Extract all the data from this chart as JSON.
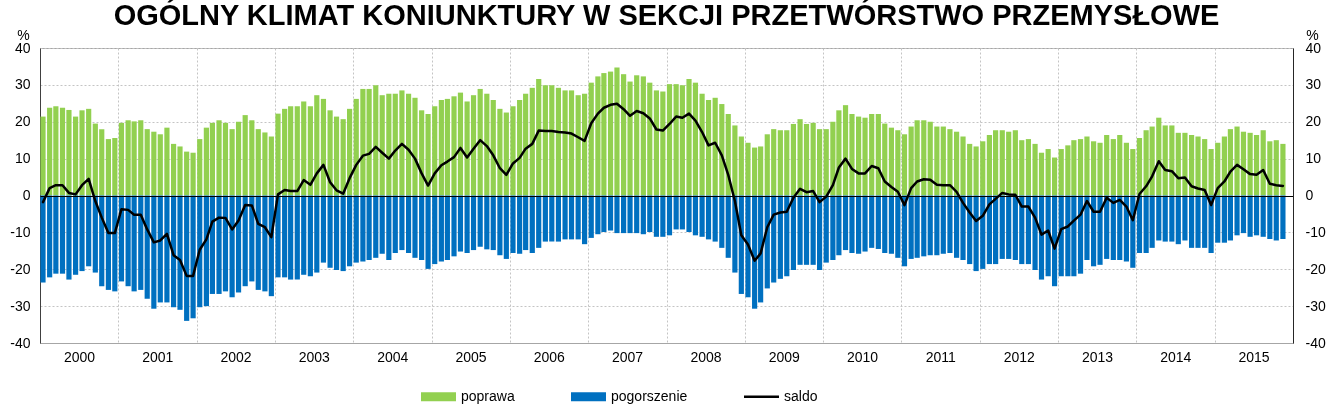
{
  "chart_data": {
    "type": "bar",
    "title": "OGÓLNY KLIMAT KONIUNKTURY W SEKCJI PRZETWÓRSTWO PRZEMYSŁOWE",
    "ylabel": "%",
    "y2label": "%",
    "x": [
      "2000-01-15",
      "2000-02-15",
      "2000-03-15",
      "2000-04-15",
      "2000-05-15",
      "2000-06-15",
      "2000-07-15",
      "2000-08-15",
      "2000-09-15",
      "2000-10-15",
      "2000-11-15",
      "2000-12-15",
      "2001-01-15",
      "2001-02-15",
      "2001-03-15",
      "2001-04-15",
      "2001-05-15",
      "2001-06-15",
      "2001-07-15",
      "2001-08-15",
      "2001-09-15",
      "2001-10-15",
      "2001-11-15",
      "2001-12-15",
      "2002-01-15",
      "2002-02-15",
      "2002-03-15",
      "2002-04-15",
      "2002-05-15",
      "2002-06-15",
      "2002-07-15",
      "2002-08-15",
      "2002-09-15",
      "2002-10-15",
      "2002-11-15",
      "2002-12-15",
      "2003-01-15",
      "2003-02-15",
      "2003-03-15",
      "2003-04-15",
      "2003-05-15",
      "2003-06-15",
      "2003-07-15",
      "2003-08-15",
      "2003-09-15",
      "2003-10-15",
      "2003-11-15",
      "2003-12-15",
      "2004-01-15",
      "2004-02-15",
      "2004-03-15",
      "2004-04-15",
      "2004-05-15",
      "2004-06-15",
      "2004-07-15",
      "2004-08-15",
      "2004-09-15",
      "2004-10-15",
      "2004-11-15",
      "2004-12-15",
      "2005-01-15",
      "2005-02-15",
      "2005-03-15",
      "2005-04-15",
      "2005-05-15",
      "2005-06-15",
      "2005-07-15",
      "2005-08-15",
      "2005-09-15",
      "2005-10-15",
      "2005-11-15",
      "2005-12-15",
      "2006-01-15",
      "2006-02-15",
      "2006-03-15",
      "2006-04-15",
      "2006-05-15",
      "2006-06-15",
      "2006-07-15",
      "2006-08-15",
      "2006-09-15",
      "2006-10-15",
      "2006-11-15",
      "2006-12-15",
      "2007-01-15",
      "2007-02-15",
      "2007-03-15",
      "2007-04-15",
      "2007-05-15",
      "2007-06-15",
      "2007-07-15",
      "2007-08-15",
      "2007-09-15",
      "2007-10-15",
      "2007-11-15",
      "2007-12-15",
      "2008-01-15",
      "2008-02-15",
      "2008-03-15",
      "2008-04-15",
      "2008-05-15",
      "2008-06-15",
      "2008-07-15",
      "2008-08-15",
      "2008-09-15",
      "2008-10-15",
      "2008-11-15",
      "2008-12-15",
      "2009-01-15",
      "2009-02-15",
      "2009-03-15",
      "2009-04-15",
      "2009-05-15",
      "2009-06-15",
      "2009-07-15",
      "2009-08-15",
      "2009-09-15",
      "2009-10-15",
      "2009-11-15",
      "2009-12-15",
      "2010-01-15",
      "2010-02-15",
      "2010-03-15",
      "2010-04-15",
      "2010-05-15",
      "2010-06-15",
      "2010-07-15",
      "2010-08-15",
      "2010-09-15",
      "2010-10-15",
      "2010-11-15",
      "2010-12-15",
      "2011-01-15",
      "2011-02-15",
      "2011-03-15",
      "2011-04-15",
      "2011-05-15",
      "2011-06-15",
      "2011-07-15",
      "2011-08-15",
      "2011-09-15",
      "2011-10-15",
      "2011-11-15",
      "2011-12-15",
      "2012-01-15",
      "2012-02-15",
      "2012-03-15",
      "2012-04-15",
      "2012-05-15",
      "2012-06-15",
      "2012-07-15",
      "2012-08-15",
      "2012-09-15",
      "2012-10-15",
      "2012-11-15",
      "2012-12-15",
      "2013-01-15",
      "2013-02-15",
      "2013-03-15",
      "2013-04-15",
      "2013-05-15",
      "2013-06-15",
      "2013-07-15",
      "2013-08-15",
      "2013-09-15",
      "2013-10-15",
      "2013-11-15",
      "2013-12-15",
      "2014-01-15",
      "2014-02-15",
      "2014-03-15",
      "2014-04-15",
      "2014-05-15",
      "2014-06-15",
      "2014-07-15",
      "2014-08-15",
      "2014-09-15",
      "2014-10-15",
      "2014-11-15",
      "2014-12-15",
      "2015-01-15",
      "2015-02-15",
      "2015-03-15",
      "2015-04-15",
      "2015-05-15",
      "2015-06-15",
      "2015-07-15",
      "2015-08-15",
      "2015-09-15",
      "2015-10-15",
      "2015-11-15"
    ],
    "xlim": [
      "2000-01",
      "2016-01"
    ],
    "xticks": [
      {
        "value": "2000-07",
        "label": "2000"
      },
      {
        "value": "2001-01",
        "label": null
      },
      {
        "value": "2001-07",
        "label": "2001"
      },
      {
        "value": "2002-01",
        "label": null
      },
      {
        "value": "2002-07",
        "label": "2002"
      },
      {
        "value": "2003-01",
        "label": null
      },
      {
        "value": "2003-07",
        "label": "2003"
      },
      {
        "value": "2004-01",
        "label": null
      },
      {
        "value": "2004-07",
        "label": "2004"
      },
      {
        "value": "2005-01",
        "label": null
      },
      {
        "value": "2005-07",
        "label": "2005"
      },
      {
        "value": "2006-01",
        "label": null
      },
      {
        "value": "2006-07",
        "label": "2006"
      },
      {
        "value": "2007-01",
        "label": null
      },
      {
        "value": "2007-07",
        "label": "2007"
      },
      {
        "value": "2008-01",
        "label": null
      },
      {
        "value": "2008-07",
        "label": "2008"
      },
      {
        "value": "2009-01",
        "label": null
      },
      {
        "value": "2009-07",
        "label": "2009"
      },
      {
        "value": "2010-01",
        "label": null
      },
      {
        "value": "2010-07",
        "label": "2010"
      },
      {
        "value": "2011-01",
        "label": null
      },
      {
        "value": "2011-07",
        "label": "2011"
      },
      {
        "value": "2012-01",
        "label": null
      },
      {
        "value": "2012-07",
        "label": "2012"
      },
      {
        "value": "2013-01",
        "label": null
      },
      {
        "value": "2013-07",
        "label": "2013"
      },
      {
        "value": "2014-01",
        "label": null
      },
      {
        "value": "2014-07",
        "label": "2014"
      },
      {
        "value": "2015-01",
        "label": null
      },
      {
        "value": "2015-07",
        "label": "2015"
      }
    ],
    "ylim": [
      -40,
      40
    ],
    "yticks": [
      -40,
      -30,
      -20,
      -10,
      0,
      10,
      20,
      30,
      40
    ],
    "y2lim": [
      -40,
      40
    ],
    "y2ticks": [
      -40,
      -30,
      -20,
      -10,
      0,
      10,
      20,
      30,
      40
    ],
    "grid": true,
    "legend": "bottom",
    "stacked": true,
    "series": [
      {
        "name": "poprawa",
        "color": "#92d050",
        "values": [
          21.4,
          23.8,
          24.2,
          23.8,
          23.2,
          21.4,
          23.1,
          23.5,
          19.5,
          18.0,
          15.3,
          15.6,
          19.7,
          20.4,
          20.1,
          20.4,
          18.0,
          17.3,
          16.6,
          18.4,
          14.0,
          13.3,
          11.9,
          11.6,
          15.3,
          18.4,
          19.7,
          20.4,
          19.7,
          18.0,
          20.0,
          21.8,
          20.4,
          18.0,
          17.1,
          16.0,
          22.2,
          23.5,
          24.2,
          24.2,
          25.5,
          24.2,
          27.2,
          26.2,
          23.1,
          21.4,
          20.7,
          23.5,
          26.2,
          28.9,
          28.9,
          29.9,
          27.2,
          27.6,
          27.6,
          28.5,
          27.6,
          26.5,
          23.1,
          22.1,
          24.2,
          25.9,
          26.2,
          26.9,
          27.9,
          25.5,
          27.2,
          28.9,
          27.6,
          25.9,
          23.5,
          22.5,
          24.2,
          25.9,
          27.6,
          29.2,
          31.6,
          29.9,
          29.9,
          29.2,
          28.5,
          28.5,
          27.2,
          27.6,
          30.6,
          32.3,
          33.2,
          33.6,
          34.7,
          32.9,
          30.9,
          32.6,
          32.3,
          30.6,
          28.5,
          28.2,
          30.2,
          30.2,
          29.9,
          31.6,
          30.6,
          27.6,
          25.9,
          26.5,
          24.8,
          22.1,
          19.0,
          16.0,
          14.3,
          13.0,
          13.3,
          16.6,
          18.0,
          17.7,
          17.7,
          19.4,
          20.7,
          19.4,
          19.7,
          18.0,
          18.0,
          20.0,
          23.1,
          24.5,
          22.1,
          21.4,
          21.1,
          22.1,
          22.1,
          19.5,
          18.4,
          17.7,
          16.6,
          18.7,
          20.4,
          20.4,
          20.0,
          18.7,
          18.7,
          18.0,
          17.3,
          16.0,
          14.0,
          13.3,
          14.7,
          16.4,
          17.7,
          17.7,
          17.3,
          17.7,
          15.0,
          15.3,
          14.0,
          11.6,
          12.6,
          10.3,
          12.6,
          13.6,
          15.0,
          15.3,
          16.0,
          14.7,
          14.3,
          16.4,
          15.3,
          16.4,
          14.3,
          12.6,
          15.6,
          17.7,
          18.7,
          21.1,
          19.0,
          19.0,
          17.0,
          17.0,
          16.4,
          16.0,
          15.3,
          12.6,
          14.3,
          16.0,
          18.0,
          18.7,
          17.3,
          17.0,
          16.4,
          17.7,
          14.7,
          15.0,
          14.0
        ]
      },
      {
        "name": "pogorszenie",
        "color": "#0070c0",
        "values": [
          -23.6,
          -22.2,
          -21.2,
          -21.2,
          -22.8,
          -21.5,
          -20.5,
          -19.2,
          -20.9,
          -24.6,
          -25.6,
          -26.0,
          -23.3,
          -24.6,
          -26.0,
          -25.6,
          -28.0,
          -30.7,
          -29.0,
          -29.0,
          -30.3,
          -31.0,
          -34.0,
          -33.3,
          -30.3,
          -30.0,
          -26.7,
          -26.7,
          -26.0,
          -27.6,
          -26.3,
          -24.6,
          -23.3,
          -25.6,
          -26.0,
          -27.3,
          -22.2,
          -22.2,
          -22.8,
          -22.8,
          -21.5,
          -21.9,
          -20.9,
          -18.2,
          -19.6,
          -20.2,
          -20.5,
          -19.2,
          -18.2,
          -17.9,
          -17.5,
          -16.9,
          -15.8,
          -17.5,
          -15.6,
          -14.8,
          -15.6,
          -16.9,
          -17.5,
          -19.9,
          -18.6,
          -17.9,
          -17.5,
          -16.5,
          -15.2,
          -15.6,
          -14.8,
          -13.9,
          -14.6,
          -14.8,
          -16.2,
          -17.2,
          -15.6,
          -15.8,
          -14.8,
          -15.6,
          -14.2,
          -12.5,
          -12.5,
          -12.5,
          -11.9,
          -11.9,
          -11.9,
          -13.2,
          -11.5,
          -10.5,
          -9.9,
          -9.5,
          -10.2,
          -10.2,
          -10.2,
          -10.2,
          -10.5,
          -9.9,
          -11.2,
          -11.2,
          -10.8,
          -9.2,
          -9.2,
          -9.9,
          -10.8,
          -11.2,
          -11.9,
          -12.5,
          -14.2,
          -16.9,
          -20.9,
          -26.7,
          -27.6,
          -30.7,
          -29.0,
          -25.2,
          -23.6,
          -22.6,
          -21.9,
          -20.2,
          -18.8,
          -18.8,
          -18.8,
          -20.2,
          -18.2,
          -17.5,
          -16.2,
          -14.8,
          -15.6,
          -15.8,
          -15.2,
          -14.2,
          -14.5,
          -15.6,
          -15.8,
          -16.9,
          -19.2,
          -17.2,
          -16.9,
          -16.5,
          -16.2,
          -16.2,
          -15.8,
          -15.6,
          -16.9,
          -17.5,
          -18.6,
          -20.5,
          -19.9,
          -18.6,
          -18.6,
          -17.2,
          -17.2,
          -17.5,
          -18.6,
          -18.6,
          -20.2,
          -22.8,
          -21.9,
          -24.6,
          -21.9,
          -21.9,
          -21.9,
          -21.2,
          -17.5,
          -19.2,
          -18.8,
          -17.2,
          -17.5,
          -17.5,
          -17.9,
          -19.6,
          -15.6,
          -15.6,
          -14.2,
          -12.2,
          -12.5,
          -12.5,
          -13.2,
          -12.2,
          -14.2,
          -14.2,
          -14.2,
          -15.6,
          -12.8,
          -12.8,
          -12.2,
          -10.8,
          -10.2,
          -11.2,
          -10.8,
          -11.2,
          -11.8,
          -12.2,
          -11.8
        ]
      },
      {
        "name": "saldo",
        "type": "line",
        "color": "#000000",
        "values": [
          -1.8,
          2.0,
          2.8,
          2.8,
          0.7,
          0.3,
          2.8,
          4.5,
          -1.5,
          -6.0,
          -10.2,
          -10.2,
          -3.7,
          -3.9,
          -5.2,
          -5.2,
          -9.2,
          -12.7,
          -12.2,
          -10.4,
          -16.2,
          -17.5,
          -21.8,
          -21.8,
          -14.7,
          -11.9,
          -7.1,
          -6.0,
          -6.1,
          -9.2,
          -6.8,
          -2.6,
          -2.7,
          -7.7,
          -8.6,
          -11.3,
          0.3,
          1.5,
          1.2,
          1.2,
          4.2,
          2.9,
          6.0,
          8.3,
          3.6,
          1.4,
          0.5,
          4.7,
          8.3,
          10.8,
          11.3,
          13.2,
          11.6,
          10.0,
          12.2,
          14.0,
          12.4,
          10.0,
          6.0,
          2.7,
          6.0,
          8.2,
          9.2,
          10.4,
          12.9,
          10.3,
          12.7,
          15.0,
          13.4,
          10.9,
          7.4,
          5.6,
          8.7,
          10.2,
          12.7,
          14.0,
          17.6,
          17.5,
          17.5,
          17.2,
          17.1,
          16.8,
          15.8,
          14.8,
          19.6,
          22.2,
          23.8,
          24.6,
          24.9,
          23.4,
          21.6,
          22.9,
          22.3,
          20.9,
          17.9,
          17.6,
          19.4,
          21.4,
          21.1,
          22.2,
          20.3,
          17.2,
          13.6,
          14.3,
          10.9,
          5.6,
          -1.5,
          -10.8,
          -13.3,
          -17.7,
          -15.7,
          -8.6,
          -5.2,
          -4.6,
          -4.4,
          -0.6,
          1.8,
          0.9,
          1.2,
          -1.8,
          -0.3,
          2.8,
          7.6,
          10.0,
          7.2,
          6.0,
          6.0,
          8.0,
          7.4,
          3.8,
          2.3,
          1.0,
          -2.6,
          2.0,
          3.8,
          4.4,
          4.3,
          2.9,
          2.8,
          2.8,
          1.0,
          -2.0,
          -4.6,
          -6.9,
          -5.5,
          -2.4,
          -0.9,
          0.7,
          0.3,
          0.2,
          -3.0,
          -3.0,
          -6.0,
          -10.6,
          -9.5,
          -14.4,
          -9.1,
          -8.4,
          -6.8,
          -5.2,
          -1.5,
          -4.4,
          -4.4,
          -0.6,
          -2.0,
          -1.2,
          -3.0,
          -6.7,
          0.4,
          2.5,
          5.2,
          9.3,
          6.9,
          6.6,
          4.7,
          4.9,
          2.5,
          1.9,
          1.5,
          -2.6,
          2.0,
          3.8,
          6.5,
          8.3,
          7.1,
          5.8,
          5.6,
          6.9,
          3.2,
          2.8,
          2.6
        ]
      }
    ]
  }
}
